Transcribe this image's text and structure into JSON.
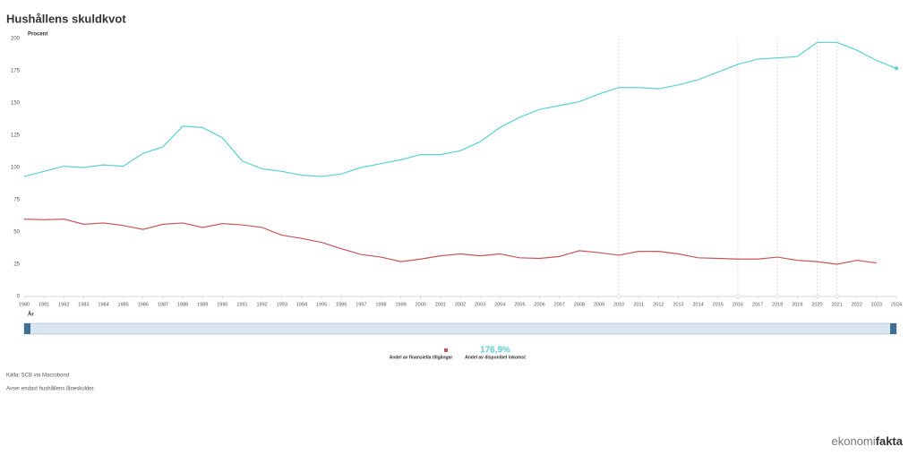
{
  "chart_data": {
    "type": "line",
    "title": "Hushållens skuldkvot",
    "y_label": "Procent",
    "x_label": "År",
    "x": [
      1980,
      1981,
      1982,
      1983,
      1984,
      1985,
      1986,
      1987,
      1988,
      1989,
      1990,
      1991,
      1992,
      1993,
      1994,
      1995,
      1996,
      1997,
      1998,
      1999,
      2000,
      2001,
      2002,
      2003,
      2004,
      2005,
      2006,
      2007,
      2008,
      2009,
      2010,
      2011,
      2012,
      2013,
      2014,
      2015,
      2016,
      2017,
      2018,
      2019,
      2020,
      2021,
      2022,
      2023,
      2024
    ],
    "xlim": [
      1980,
      2024
    ],
    "xticks": [
      1980,
      1981,
      1982,
      1983,
      1984,
      1985,
      1986,
      1987,
      1988,
      1989,
      1990,
      1991,
      1992,
      1993,
      1994,
      1995,
      1996,
      1997,
      1998,
      1999,
      2000,
      2001,
      2002,
      2003,
      2004,
      2005,
      2006,
      2007,
      2008,
      2009,
      2010,
      2011,
      2012,
      2013,
      2014,
      2015,
      2016,
      2017,
      2018,
      2019,
      2020,
      2021,
      2022,
      2023,
      2024
    ],
    "ylim": [
      0,
      200
    ],
    "yticks": [
      0,
      25,
      50,
      75,
      100,
      125,
      150,
      175,
      200
    ],
    "markers": [
      2010,
      2016,
      2018,
      2020,
      2021
    ],
    "series": [
      {
        "name": "Andel av finansiella tillgångar",
        "color": "#c4565a",
        "values": [
          60,
          59.5,
          60,
          56,
          57,
          55,
          52,
          56,
          57,
          53.5,
          56.5,
          55.5,
          53.5,
          47.5,
          45,
          42,
          37,
          32.5,
          30.5,
          27,
          29,
          31.5,
          33,
          31.5,
          33,
          30,
          29.5,
          31,
          35.5,
          34,
          32,
          35,
          35,
          33,
          30,
          29.5,
          29,
          29,
          30.5,
          28,
          27,
          25,
          28,
          26,
          null
        ]
      },
      {
        "name": "Andel av disponibel inkomst",
        "color": "#5dcfd3",
        "values": [
          93,
          97,
          101,
          100,
          102,
          101,
          111,
          116,
          132,
          131,
          123,
          105,
          99,
          97,
          94,
          93,
          95,
          100,
          103,
          106,
          110,
          110,
          113,
          120,
          131,
          139,
          145,
          148,
          151,
          157,
          162,
          162,
          161,
          164,
          168,
          174,
          180,
          184,
          185,
          186,
          197,
          197,
          191,
          183,
          176.9
        ],
        "value_labels": [
          null,
          null,
          null,
          null,
          null,
          null,
          null,
          null,
          null,
          null,
          null,
          null,
          null,
          null,
          null,
          null,
          null,
          null,
          null,
          null,
          null,
          null,
          null,
          null,
          null,
          null,
          null,
          null,
          null,
          null,
          null,
          null,
          null,
          null,
          null,
          null,
          null,
          null,
          null,
          null,
          null,
          null,
          null,
          null,
          "176,9%"
        ]
      }
    ],
    "source": "Källa: SCB via Macrobond",
    "note": "Avser endast hushållens låneskulder.",
    "logo": [
      "ekonomi",
      "fakta"
    ]
  }
}
